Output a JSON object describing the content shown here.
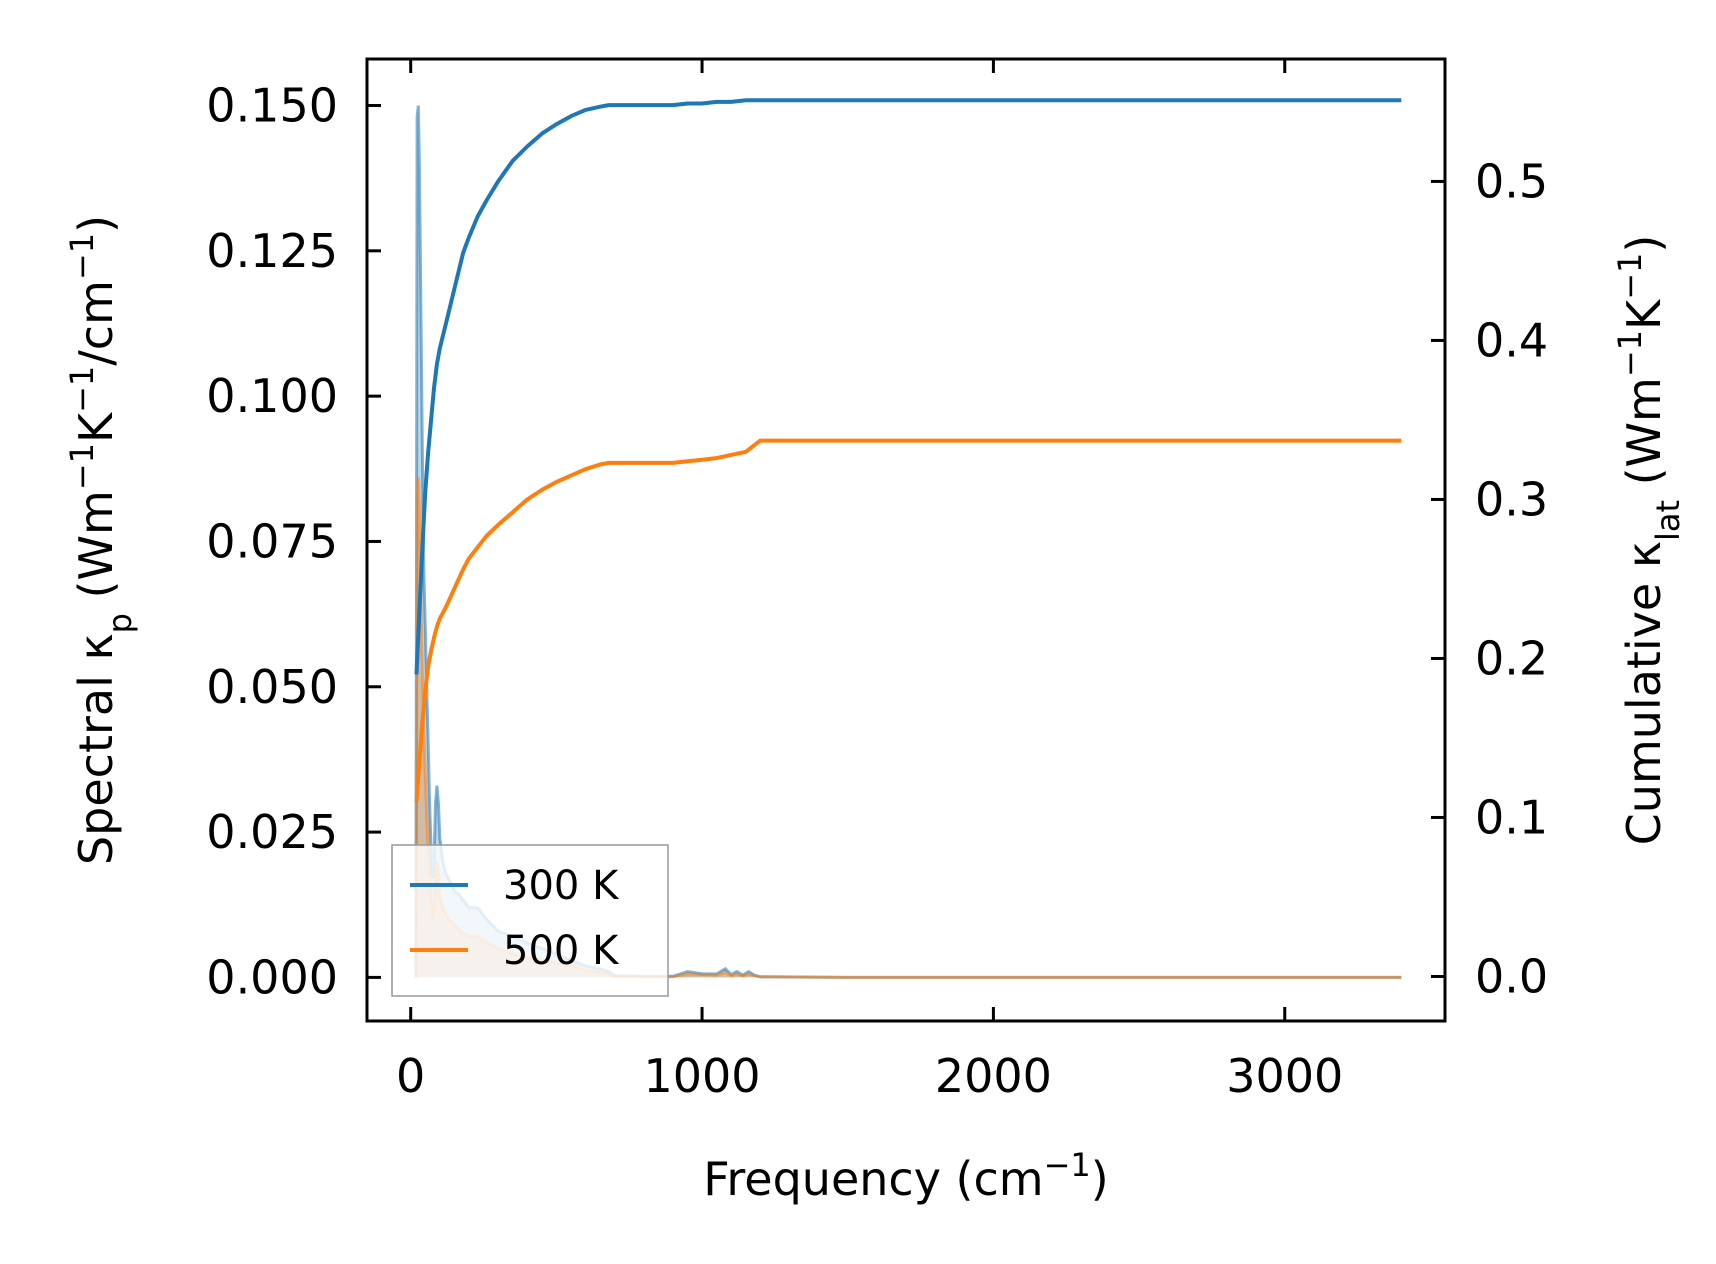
{
  "chart_data": {
    "type": "line",
    "xlabel": {
      "text": "Frequency (cm",
      "sup": "−1",
      "close": ")"
    },
    "ylabel_left": {
      "parts": [
        {
          "t": "Spectral κ"
        },
        {
          "t": "p",
          "s": "sub"
        },
        {
          "t": " (Wm"
        },
        {
          "t": "−1",
          "s": "sup"
        },
        {
          "t": "K"
        },
        {
          "t": "−1",
          "s": "sup"
        },
        {
          "t": "/cm"
        },
        {
          "t": "−1",
          "s": "sup"
        },
        {
          "t": ")"
        }
      ]
    },
    "ylabel_right": {
      "parts": [
        {
          "t": "Cumulative κ"
        },
        {
          "t": "lat",
          "s": "sub"
        },
        {
          "t": " (Wm"
        },
        {
          "t": "−1",
          "s": "sup"
        },
        {
          "t": "K"
        },
        {
          "t": "−1",
          "s": "sup"
        },
        {
          "t": ")"
        }
      ]
    },
    "xlim": [
      -150,
      3550
    ],
    "ylim_left": [
      -0.0075,
      0.158
    ],
    "ylim_right": [
      -0.028,
      0.577
    ],
    "xticks": [
      0,
      1000,
      2000,
      3000
    ],
    "xtick_labels": [
      "0",
      "1000",
      "2000",
      "3000"
    ],
    "yticks_left": [
      0,
      0.025,
      0.05,
      0.075,
      0.1,
      0.125,
      0.15
    ],
    "ytick_labels_left": [
      "0.000",
      "0.025",
      "0.050",
      "0.075",
      "0.100",
      "0.125",
      "0.150"
    ],
    "yticks_right": [
      0,
      0.1,
      0.2,
      0.3,
      0.4,
      0.5
    ],
    "ytick_labels_right": [
      "0.0",
      "0.1",
      "0.2",
      "0.3",
      "0.4",
      "0.5"
    ],
    "legend": {
      "position": "lower-left",
      "entries": [
        "300 K",
        "500 K"
      ]
    },
    "series": [
      {
        "name": "300 K",
        "color": "#1f77b4",
        "spectral": {
          "x": [
            18,
            22,
            26,
            30,
            35,
            40,
            45,
            50,
            55,
            60,
            65,
            70,
            75,
            80,
            85,
            90,
            95,
            100,
            110,
            120,
            130,
            140,
            150,
            170,
            200,
            230,
            260,
            300,
            350,
            400,
            450,
            500,
            550,
            600,
            650,
            680,
            700,
            800,
            900,
            920,
            950,
            980,
            1000,
            1050,
            1080,
            1100,
            1120,
            1140,
            1160,
            1180,
            1200,
            1500,
            2000,
            2500,
            3000,
            3400
          ],
          "y": [
            0.0,
            0.148,
            0.15,
            0.14,
            0.115,
            0.09,
            0.07,
            0.06,
            0.05,
            0.04,
            0.03,
            0.022,
            0.017,
            0.02,
            0.03,
            0.033,
            0.03,
            0.024,
            0.02,
            0.018,
            0.017,
            0.016,
            0.015,
            0.014,
            0.012,
            0.012,
            0.01,
            0.008,
            0.007,
            0.006,
            0.005,
            0.004,
            0.003,
            0.002,
            0.0015,
            0.001,
            0.0003,
            0.0002,
            0.0002,
            0.0005,
            0.001,
            0.0008,
            0.0006,
            0.0006,
            0.0015,
            0.0005,
            0.001,
            0.0004,
            0.001,
            0.0004,
            0.0001,
            0.0,
            0.0,
            0.0,
            0.0,
            0.0
          ]
        },
        "cumulative": {
          "x": [
            20,
            30,
            40,
            50,
            60,
            70,
            80,
            90,
            100,
            120,
            140,
            160,
            180,
            200,
            230,
            260,
            300,
            350,
            400,
            450,
            500,
            550,
            600,
            650,
            680,
            700,
            800,
            900,
            950,
            1000,
            1050,
            1100,
            1150,
            1200,
            1500,
            2000,
            2500,
            3000,
            3400
          ],
          "y": [
            0.19,
            0.23,
            0.27,
            0.305,
            0.33,
            0.35,
            0.37,
            0.385,
            0.395,
            0.41,
            0.425,
            0.44,
            0.455,
            0.465,
            0.478,
            0.488,
            0.5,
            0.513,
            0.522,
            0.53,
            0.536,
            0.541,
            0.545,
            0.547,
            0.548,
            0.548,
            0.548,
            0.548,
            0.549,
            0.549,
            0.55,
            0.55,
            0.551,
            0.551,
            0.551,
            0.551,
            0.551,
            0.551,
            0.551
          ]
        }
      },
      {
        "name": "500 K",
        "color": "#ff7f0e",
        "spectral": {
          "x": [
            18,
            22,
            26,
            30,
            35,
            40,
            45,
            50,
            55,
            60,
            65,
            70,
            75,
            80,
            85,
            90,
            95,
            100,
            110,
            120,
            130,
            140,
            150,
            170,
            200,
            230,
            260,
            300,
            350,
            400,
            450,
            500,
            550,
            600,
            650,
            680,
            700,
            800,
            900,
            950,
            1000,
            1050,
            1080,
            1100,
            1120,
            1140,
            1160,
            1180,
            1200,
            1500,
            2000,
            2500,
            3000,
            3400
          ],
          "y": [
            0.0,
            0.085,
            0.086,
            0.08,
            0.065,
            0.052,
            0.042,
            0.035,
            0.028,
            0.022,
            0.017,
            0.013,
            0.01,
            0.012,
            0.018,
            0.02,
            0.018,
            0.014,
            0.012,
            0.011,
            0.01,
            0.0095,
            0.009,
            0.008,
            0.007,
            0.007,
            0.006,
            0.005,
            0.004,
            0.0035,
            0.003,
            0.0025,
            0.002,
            0.0012,
            0.0009,
            0.0006,
            0.0002,
            0.0001,
            0.0001,
            0.0006,
            0.0005,
            0.0004,
            0.0009,
            0.0003,
            0.0006,
            0.0003,
            0.0006,
            0.0003,
            0.0001,
            0.0,
            0.0,
            0.0,
            0.0,
            0.0
          ]
        },
        "cumulative": {
          "x": [
            20,
            30,
            40,
            50,
            60,
            70,
            80,
            90,
            100,
            120,
            140,
            160,
            180,
            200,
            230,
            260,
            300,
            350,
            400,
            450,
            500,
            550,
            600,
            650,
            680,
            700,
            800,
            900,
            950,
            1000,
            1050,
            1100,
            1150,
            1200,
            1500,
            2000,
            2500,
            3000,
            3400
          ],
          "y": [
            0.11,
            0.135,
            0.16,
            0.18,
            0.195,
            0.205,
            0.213,
            0.22,
            0.225,
            0.232,
            0.24,
            0.248,
            0.256,
            0.263,
            0.27,
            0.277,
            0.284,
            0.292,
            0.3,
            0.306,
            0.311,
            0.315,
            0.319,
            0.322,
            0.323,
            0.323,
            0.323,
            0.323,
            0.324,
            0.325,
            0.326,
            0.328,
            0.33,
            0.337,
            0.337,
            0.337,
            0.337,
            0.337,
            0.337
          ]
        }
      }
    ]
  }
}
